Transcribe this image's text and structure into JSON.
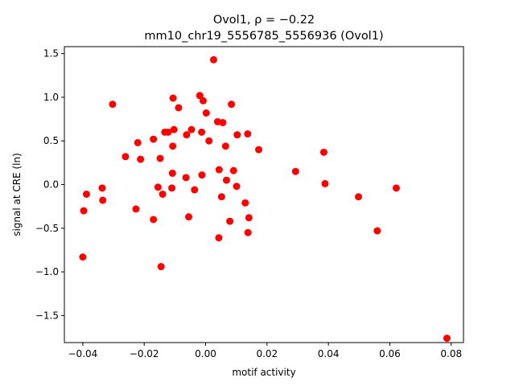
{
  "chart_data": {
    "type": "scatter",
    "title_line1": "Ovol1, ρ = −0.22",
    "title_line2": "mm10_chr19_5556785_5556936 (Ovol1)",
    "xlabel": "motif activity",
    "ylabel": "signal at CRE (ln)",
    "xlim": [
      -0.046,
      0.084
    ],
    "ylim": [
      -1.81,
      1.58
    ],
    "x_ticks": [
      -0.04,
      -0.02,
      0.0,
      0.02,
      0.04,
      0.06,
      0.08
    ],
    "x_tick_labels": [
      "−0.04",
      "−0.02",
      "0.00",
      "0.02",
      "0.04",
      "0.06",
      "0.08"
    ],
    "y_ticks": [
      1.5,
      1.0,
      0.5,
      0.0,
      -0.5,
      -1.0,
      -1.5
    ],
    "y_tick_labels": [
      "1.5",
      "1.0",
      "0.5",
      "0.0",
      "−0.5",
      "−1.0",
      "−1.5"
    ],
    "grid": false,
    "marker_color": "#ff0000",
    "points": [
      {
        "x": -0.04,
        "y": -0.83
      },
      {
        "x": -0.0397,
        "y": -0.3
      },
      {
        "x": -0.0388,
        "y": -0.11
      },
      {
        "x": -0.0337,
        "y": -0.04
      },
      {
        "x": -0.0335,
        "y": -0.18
      },
      {
        "x": -0.0303,
        "y": 0.92
      },
      {
        "x": -0.0261,
        "y": 0.32
      },
      {
        "x": -0.0227,
        "y": -0.28
      },
      {
        "x": -0.0221,
        "y": 0.48
      },
      {
        "x": -0.0212,
        "y": 0.29
      },
      {
        "x": -0.017,
        "y": 0.52
      },
      {
        "x": -0.017,
        "y": -0.4
      },
      {
        "x": -0.0155,
        "y": -0.03
      },
      {
        "x": -0.0148,
        "y": 0.3
      },
      {
        "x": -0.0145,
        "y": -0.94
      },
      {
        "x": -0.014,
        "y": -0.11
      },
      {
        "x": -0.0133,
        "y": 0.6
      },
      {
        "x": -0.0122,
        "y": 0.6
      },
      {
        "x": -0.011,
        "y": -0.04
      },
      {
        "x": -0.0108,
        "y": 0.13
      },
      {
        "x": -0.0107,
        "y": 0.44
      },
      {
        "x": -0.0106,
        "y": 0.99
      },
      {
        "x": -0.0103,
        "y": 0.63
      },
      {
        "x": -0.0088,
        "y": 0.88
      },
      {
        "x": -0.0064,
        "y": 0.08
      },
      {
        "x": -0.0062,
        "y": 0.57
      },
      {
        "x": -0.0055,
        "y": -0.37
      },
      {
        "x": -0.0046,
        "y": 0.63
      },
      {
        "x": -0.0036,
        "y": -0.06
      },
      {
        "x": -0.0019,
        "y": 1.02
      },
      {
        "x": -0.0013,
        "y": 0.6
      },
      {
        "x": -0.0012,
        "y": 0.11
      },
      {
        "x": -0.0008,
        "y": 0.96
      },
      {
        "x": 0.0002,
        "y": 0.82
      },
      {
        "x": 0.0011,
        "y": 0.5
      },
      {
        "x": 0.0026,
        "y": 1.43
      },
      {
        "x": 0.0039,
        "y": 0.72
      },
      {
        "x": 0.0043,
        "y": -0.61
      },
      {
        "x": 0.0044,
        "y": 0.17
      },
      {
        "x": 0.0052,
        "y": -0.14
      },
      {
        "x": 0.0056,
        "y": 0.71
      },
      {
        "x": 0.0065,
        "y": 0.44
      },
      {
        "x": 0.0068,
        "y": 0.05
      },
      {
        "x": 0.0079,
        "y": -0.42
      },
      {
        "x": 0.0084,
        "y": 0.92
      },
      {
        "x": 0.0091,
        "y": 0.16
      },
      {
        "x": 0.0101,
        "y": -0.02
      },
      {
        "x": 0.0103,
        "y": 0.57
      },
      {
        "x": 0.0129,
        "y": -0.21
      },
      {
        "x": 0.0137,
        "y": 0.58
      },
      {
        "x": 0.0138,
        "y": -0.55
      },
      {
        "x": 0.0141,
        "y": -0.38
      },
      {
        "x": 0.0173,
        "y": 0.4
      },
      {
        "x": 0.0293,
        "y": 0.15
      },
      {
        "x": 0.0385,
        "y": 0.37
      },
      {
        "x": 0.0389,
        "y": 0.01
      },
      {
        "x": 0.0498,
        "y": -0.14
      },
      {
        "x": 0.0559,
        "y": -0.53
      },
      {
        "x": 0.0621,
        "y": -0.04
      },
      {
        "x": 0.0786,
        "y": -1.76
      }
    ]
  }
}
